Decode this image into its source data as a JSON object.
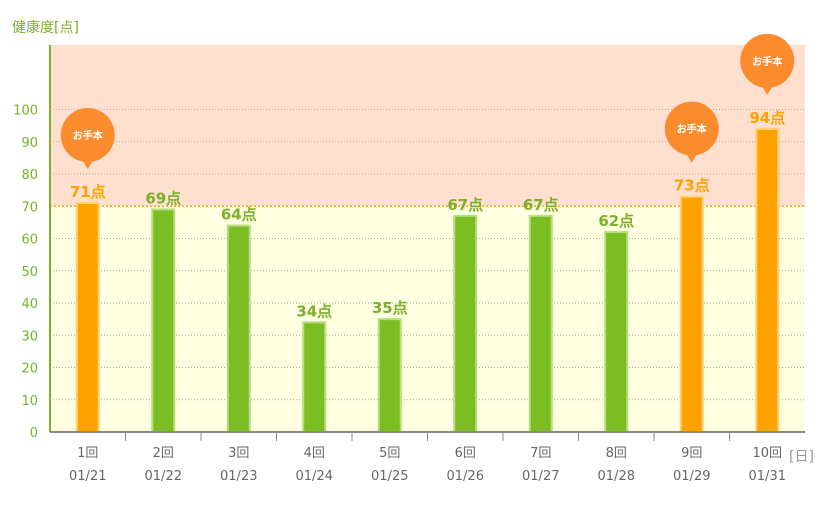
{
  "chart_data": {
    "type": "bar",
    "ylabel": "健康度[点]",
    "xunit": "[日]",
    "ylim": [
      0,
      120
    ],
    "yticks": [
      0,
      10,
      20,
      30,
      40,
      50,
      60,
      70,
      80,
      90,
      100
    ],
    "threshold": 70,
    "categories": [
      "1回",
      "2回",
      "3回",
      "4回",
      "5回",
      "6回",
      "7回",
      "8回",
      "9回",
      "10回"
    ],
    "dates": [
      "01/21",
      "01/22",
      "01/23",
      "01/24",
      "01/25",
      "01/26",
      "01/27",
      "01/28",
      "01/29",
      "01/31"
    ],
    "values": [
      71,
      69,
      64,
      34,
      35,
      67,
      67,
      62,
      73,
      94
    ],
    "value_labels": [
      "71点",
      "69点",
      "64点",
      "34点",
      "35点",
      "67点",
      "67点",
      "62点",
      "73点",
      "94点"
    ],
    "model_flags": [
      true,
      false,
      false,
      false,
      false,
      false,
      false,
      false,
      true,
      true
    ],
    "badge_text": "お手本",
    "colors": {
      "model_bar": "#ffa200",
      "normal_bar": "#7cbd24",
      "model_label": "#ffa200",
      "normal_label": "#7cb02a",
      "badge": "#fb8c2e",
      "upper_band": "#ffdfcd",
      "lower_band": "#ffffe2",
      "axis": "#7cb02a",
      "threshold_line": "#f5a623"
    }
  }
}
